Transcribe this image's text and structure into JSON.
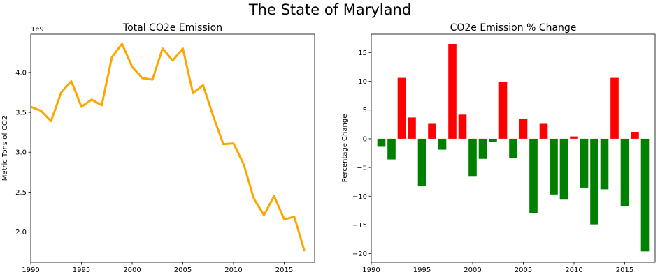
{
  "figure_title": "The State of Maryland",
  "chart_data": [
    {
      "type": "line",
      "title": "Total CO2e Emission",
      "xlabel": "",
      "ylabel": "Metric Tons of CO2",
      "y_scale_label": "1e9",
      "xlim": [
        1990,
        2018
      ],
      "ylim": [
        1.62,
        4.48
      ],
      "x_ticks": [
        1990,
        1995,
        2000,
        2005,
        2010,
        2015
      ],
      "y_ticks": [
        2.0,
        2.5,
        3.0,
        3.5,
        4.0
      ],
      "y_tick_labels": [
        "2.0",
        "2.5",
        "3.0",
        "3.5",
        "4.0"
      ],
      "line_color": "#ffa500",
      "grid": false,
      "series": [
        {
          "x": [
            1990,
            1991,
            1992,
            1993,
            1994,
            1995,
            1996,
            1997,
            1998,
            1999,
            2000,
            2001,
            2002,
            2003,
            2004,
            2005,
            2006,
            2007,
            2008,
            2009,
            2010,
            2011,
            2012,
            2013,
            2014,
            2015,
            2016,
            2017
          ],
          "values": [
            3.57,
            3.52,
            3.39,
            3.75,
            3.89,
            3.57,
            3.66,
            3.59,
            4.19,
            4.36,
            4.07,
            3.93,
            3.91,
            4.3,
            4.15,
            4.3,
            3.74,
            3.84,
            3.45,
            3.1,
            3.11,
            2.85,
            2.42,
            2.21,
            2.45,
            2.16,
            2.19,
            1.76
          ]
        }
      ]
    },
    {
      "type": "bar",
      "title": "CO2e Emission % Change",
      "xlabel": "",
      "ylabel": "Percentage Change",
      "xlim": [
        1990,
        2018
      ],
      "ylim": [
        -21.5,
        18.2
      ],
      "x_ticks": [
        1990,
        1995,
        2000,
        2005,
        2010,
        2015
      ],
      "y_ticks": [
        -20,
        -15,
        -10,
        -5,
        0,
        5,
        10,
        15
      ],
      "y_tick_labels": [
        "−20",
        "−15",
        "−10",
        "−5",
        "0",
        "5",
        "10",
        "15"
      ],
      "positive_color": "#ff0000",
      "negative_color": "#008000",
      "grid": false,
      "x": [
        1991,
        1992,
        1993,
        1994,
        1995,
        1996,
        1997,
        1998,
        1999,
        2000,
        2001,
        2002,
        2003,
        2004,
        2005,
        2006,
        2007,
        2008,
        2009,
        2010,
        2011,
        2012,
        2013,
        2014,
        2015,
        2016,
        2017
      ],
      "values": [
        -1.4,
        -3.6,
        10.6,
        3.7,
        -8.2,
        2.6,
        -1.9,
        16.5,
        4.2,
        -6.6,
        -3.5,
        -0.6,
        9.9,
        -3.3,
        3.4,
        -12.9,
        2.6,
        -9.7,
        -10.6,
        0.4,
        -8.5,
        -14.9,
        -8.8,
        10.6,
        -11.7,
        1.2,
        -19.6
      ]
    }
  ]
}
